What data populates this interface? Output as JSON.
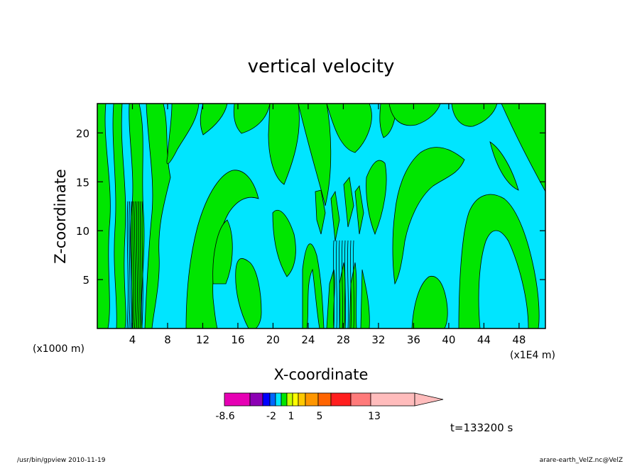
{
  "chart_data": {
    "type": "heatmap",
    "title": "vertical velocity",
    "xlabel": "X-coordinate",
    "ylabel": "Z-coordinate",
    "x_unit": "(x1E4 m)",
    "y_unit": "(x1000 m)",
    "xlim": [
      0,
      51
    ],
    "ylim": [
      0,
      23
    ],
    "x_ticks": [
      "4",
      "8",
      "12",
      "16",
      "20",
      "24",
      "28",
      "32",
      "36",
      "40",
      "44",
      "48"
    ],
    "x_tick_values": [
      4,
      8,
      12,
      16,
      20,
      24,
      28,
      32,
      36,
      40,
      44,
      48
    ],
    "y_ticks": [
      "5",
      "10",
      "15",
      "20"
    ],
    "y_tick_values": [
      5,
      10,
      15,
      20
    ],
    "field_colors": {
      "negative": "#00e5ff",
      "positive": "#00e600",
      "contour": "#000000"
    },
    "colorbar": {
      "colors": [
        "#e600b4",
        "#8c00b4",
        "#0000ff",
        "#0066ff",
        "#00e5ff",
        "#00e600",
        "#c8ff00",
        "#ffff00",
        "#ffc800",
        "#ff9600",
        "#ff6400",
        "#ff1e1e",
        "#ff7a7a",
        "#ffbcbc",
        "#ffbcbc"
      ],
      "tick_labels": [
        "-8.6",
        "-2",
        "1",
        "5",
        "13"
      ]
    },
    "time_label": "t=133200 s",
    "grid": false,
    "legend": "bottom"
  },
  "footer": {
    "left": "/usr/bin/gpview   2010-11-19",
    "right": "arare-earth_VelZ.nc@VelZ"
  }
}
